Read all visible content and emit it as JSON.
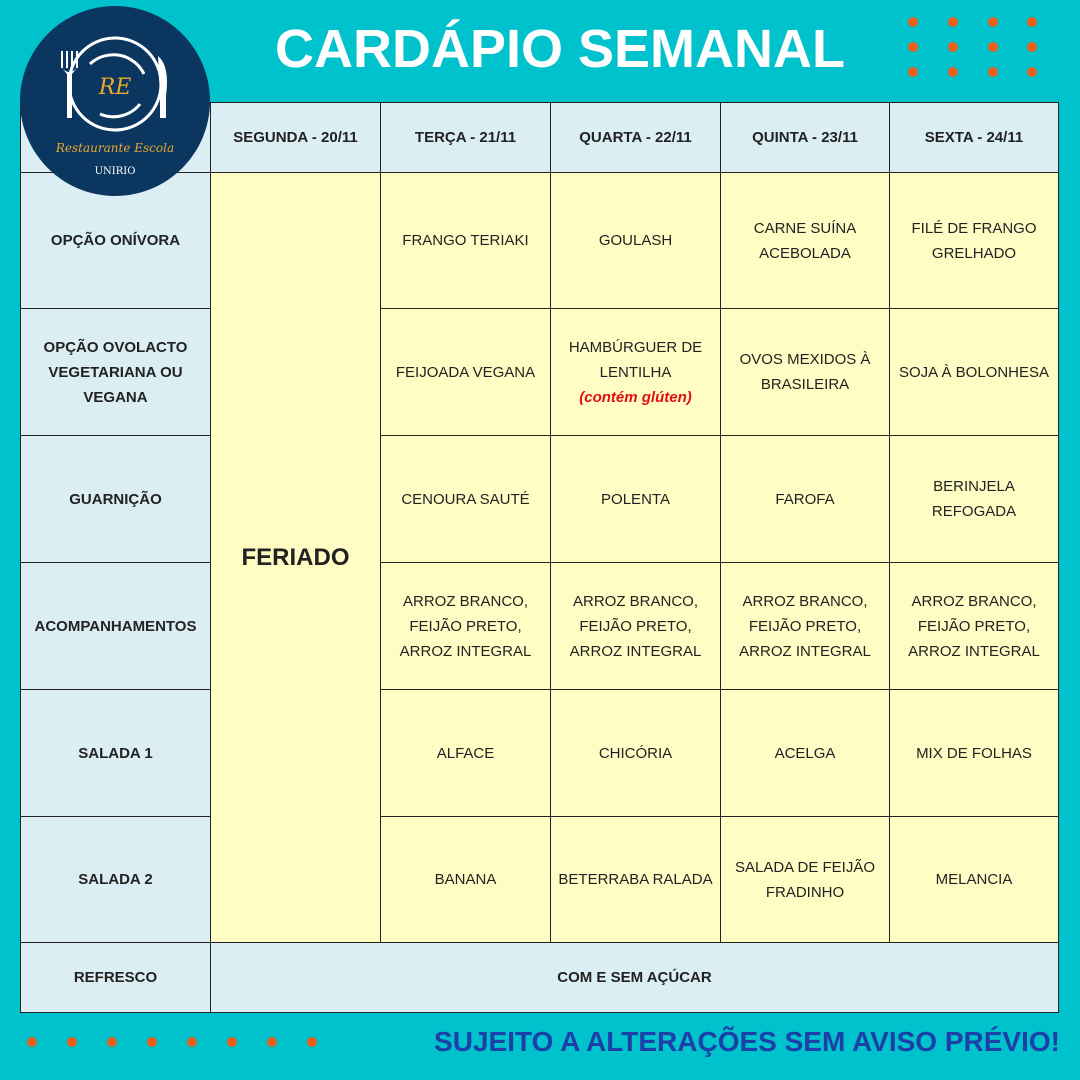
{
  "title": "CARDÁPIO SEMANAL",
  "logo": {
    "initials": "RE",
    "name": "Restaurante Escola",
    "org": "UNIRIO"
  },
  "days": [
    "SEGUNDA - 20/11",
    "TERÇA - 21/11",
    "QUARTA - 22/11",
    "QUINTA - 23/11",
    "SEXTA - 24/11"
  ],
  "holiday": "FERIADO",
  "rows": [
    {
      "label": "OPÇÃO ONÍVORA",
      "cells": [
        "FRANGO TERIAKI",
        "GOULASH",
        "CARNE SUÍNA ACEBOLADA",
        "FILÉ DE FRANGO GRELHADO"
      ]
    },
    {
      "label": "OPÇÃO OVOLACTO VEGETARIANA OU VEGANA",
      "cells": [
        "FEIJOADA VEGANA",
        "HAMBÚRGUER DE LENTILHA",
        "OVOS MEXIDOS À BRASILEIRA",
        "SOJA À BOLONHESA"
      ],
      "note": "(contém glúten)"
    },
    {
      "label": "GUARNIÇÃO",
      "cells": [
        "CENOURA SAUTÉ",
        "POLENTA",
        "FAROFA",
        "BERINJELA REFOGADA"
      ]
    },
    {
      "label": "ACOMPANHAMENTOS",
      "cells": [
        "ARROZ BRANCO, FEIJÃO PRETO, ARROZ INTEGRAL",
        "ARROZ BRANCO, FEIJÃO PRETO, ARROZ INTEGRAL",
        "ARROZ BRANCO, FEIJÃO PRETO, ARROZ INTEGRAL",
        "ARROZ BRANCO, FEIJÃO PRETO, ARROZ INTEGRAL"
      ]
    },
    {
      "label": "SALADA 1",
      "cells": [
        "ALFACE",
        "CHICÓRIA",
        "ACELGA",
        "MIX DE FOLHAS"
      ]
    },
    {
      "label": "SALADA 2",
      "cells": [
        "BANANA",
        "BETERRABA RALADA",
        "SALADA DE FEIJÃO FRADINHO",
        "MELANCIA"
      ]
    }
  ],
  "refresco": {
    "label": "REFRESCO",
    "value": "COM E SEM AÇÚCAR"
  },
  "footer": "SUJEITO A ALTERAÇÕES SEM AVISO PRÉVIO!",
  "colors": {
    "background": "#00c2cc",
    "header": "#dbeef4",
    "cell": "#fffdc4",
    "dots": "#e8601c",
    "footer": "#1c3fa8",
    "logo": "#0b3660"
  }
}
